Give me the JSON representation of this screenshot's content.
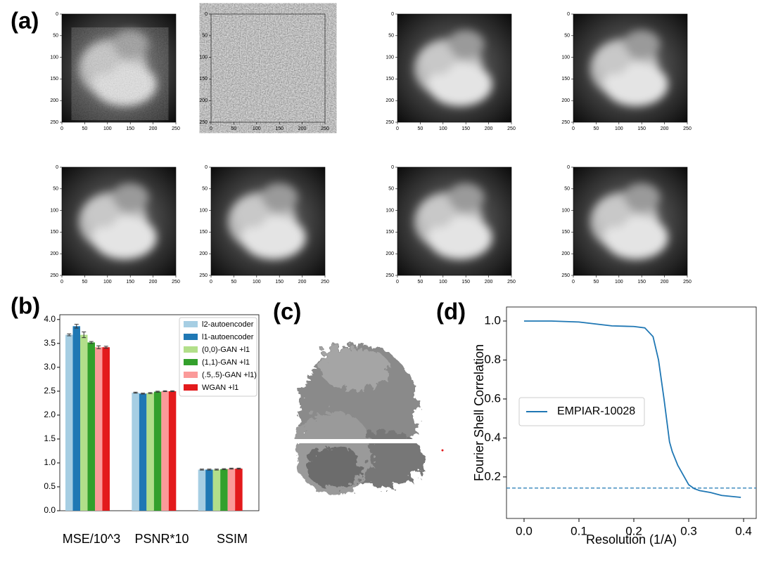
{
  "panel_labels": [
    "(a)",
    "(b)",
    "(c)",
    "(d)"
  ],
  "panel_a": {
    "ticks": [
      0,
      50,
      100,
      150,
      200,
      250
    ]
  },
  "chart_data": [
    {
      "type": "bar",
      "categories": [
        "MSE/10^3",
        "PSNR*10",
        "SSIM"
      ],
      "series": [
        {
          "name": "l2-autoencoder",
          "color": "#a6cee3",
          "values": [
            3.68,
            2.47,
            0.86
          ],
          "errors": [
            0.02,
            0.01,
            0.01
          ]
        },
        {
          "name": "l1-autoencoder",
          "color": "#1f78b4",
          "values": [
            3.86,
            2.45,
            0.86
          ],
          "errors": [
            0.04,
            0.01,
            0.01
          ]
        },
        {
          "name": "(0,0)-GAN +l1",
          "color": "#b2df8a",
          "values": [
            3.68,
            2.46,
            0.86
          ],
          "errors": [
            0.06,
            0.01,
            0.01
          ]
        },
        {
          "name": "(1,1)-GAN +l1",
          "color": "#33a02c",
          "values": [
            3.52,
            2.49,
            0.87
          ],
          "errors": [
            0.02,
            0.01,
            0.01
          ]
        },
        {
          "name": "(.5,.5)-GAN +l1)",
          "color": "#fb9a99",
          "values": [
            3.42,
            2.5,
            0.88
          ],
          "errors": [
            0.03,
            0.01,
            0.01
          ]
        },
        {
          "name": "WGAN +l1",
          "color": "#e31a1c",
          "values": [
            3.42,
            2.5,
            0.88
          ],
          "errors": [
            0.02,
            0.01,
            0.01
          ]
        }
      ],
      "ylim": [
        0,
        4.1
      ],
      "yticks": [
        {
          "value": 0,
          "label": "0.0"
        },
        0.5,
        {
          "value": 1,
          "label": "1.0"
        },
        1.5,
        {
          "value": 2,
          "label": "2.0"
        },
        2.5,
        {
          "value": 3,
          "label": "3.0"
        },
        3.5,
        {
          "value": 4,
          "label": "4.0"
        }
      ],
      "legend": "upper right"
    },
    {
      "type": "line",
      "x_label": "Resolution (1/A)",
      "y_label": "Fourier Shell Correlation",
      "x": [
        0,
        0.05,
        0.1,
        0.13,
        0.16,
        0.2,
        0.22,
        0.235,
        0.245,
        0.255,
        0.265,
        0.27,
        0.28,
        0.29,
        0.3,
        0.31,
        0.32,
        0.34,
        0.36,
        0.395
      ],
      "series": [
        {
          "name": "EMPIAR-10028",
          "color": "#1f77b4",
          "values": [
            1.0,
            1.0,
            0.995,
            0.985,
            0.975,
            0.972,
            0.965,
            0.92,
            0.8,
            0.6,
            0.38,
            0.33,
            0.26,
            0.21,
            0.16,
            0.14,
            0.13,
            0.12,
            0.105,
            0.095
          ]
        }
      ],
      "reference_line": 0.143,
      "xlim": [
        -0.032,
        0.423
      ],
      "ylim": [
        -0.013,
        1.072
      ],
      "xticks": [
        {
          "value": 0,
          "label": "0.0"
        },
        0.1,
        0.2,
        0.3,
        0.4
      ],
      "yticks": [
        0.2,
        0.4,
        0.6,
        0.8,
        {
          "value": 1,
          "label": "1.0"
        }
      ],
      "legend": "center left"
    }
  ]
}
